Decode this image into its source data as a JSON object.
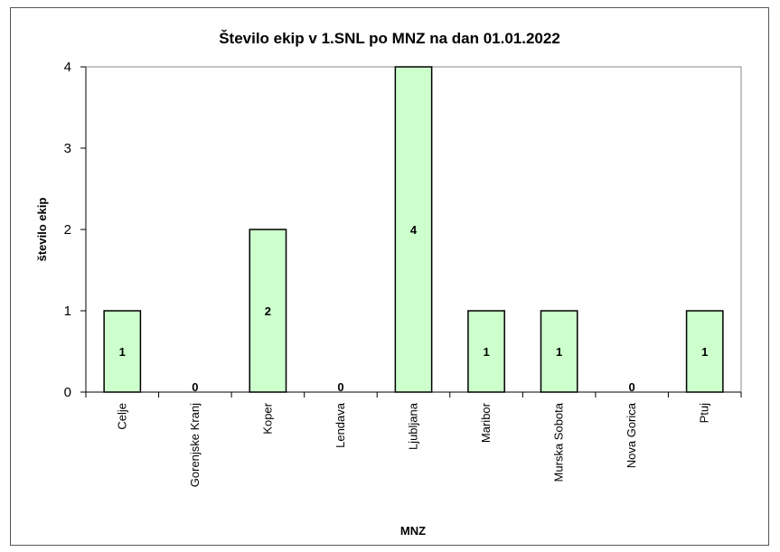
{
  "chart_data": {
    "type": "bar",
    "title": "Število ekip v 1.SNL po MNZ na dan 01.01.2022",
    "xlabel": "MNZ",
    "ylabel": "število ekip",
    "categories": [
      "Celje",
      "Gorenjske Kranj",
      "Koper",
      "Lendava",
      "Ljubljana",
      "Maribor",
      "Murska Sobota",
      "Nova Gorica",
      "Ptuj"
    ],
    "values": [
      1,
      0,
      2,
      0,
      4,
      1,
      1,
      0,
      1
    ],
    "ylim": [
      0,
      4
    ],
    "yticks": [
      0,
      1,
      2,
      3,
      4
    ],
    "grid": false,
    "legend": "none",
    "bar_color": "#ccffcc",
    "bar_border_color": "#000000"
  }
}
